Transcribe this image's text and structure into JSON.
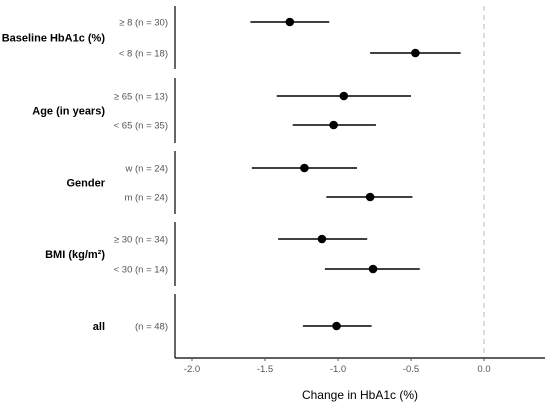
{
  "chart_data": {
    "type": "scatter",
    "xlabel": "Change in HbA1c (%)",
    "xlim": [
      -2.1,
      0.4
    ],
    "x_ticks": [
      -2.0,
      -1.5,
      -1.0,
      -0.5,
      0.0
    ],
    "x_tick_labels": [
      "-2.0",
      "-1.5",
      "-1.0",
      "-0.5",
      "0.0"
    ],
    "reference_line": 0.0,
    "groups": [
      {
        "label": "Baseline HbA1c (%)",
        "rows": [
          {
            "label": "≥ 8 (n = 30)",
            "estimate": -1.33,
            "ci_low": -1.6,
            "ci_high": -1.06
          },
          {
            "label": "< 8 (n = 18)",
            "estimate": -0.47,
            "ci_low": -0.78,
            "ci_high": -0.16
          }
        ]
      },
      {
        "label": "Age (in years)",
        "rows": [
          {
            "label": "≥ 65 (n = 13)",
            "estimate": -0.96,
            "ci_low": -1.42,
            "ci_high": -0.5
          },
          {
            "label": "< 65 (n = 35)",
            "estimate": -1.03,
            "ci_low": -1.31,
            "ci_high": -0.74
          }
        ]
      },
      {
        "label": "Gender",
        "rows": [
          {
            "label": "w (n = 24)",
            "estimate": -1.23,
            "ci_low": -1.59,
            "ci_high": -0.87
          },
          {
            "label": "m (n = 24)",
            "estimate": -0.78,
            "ci_low": -1.08,
            "ci_high": -0.49
          }
        ]
      },
      {
        "label": "BMI (kg/m²)",
        "rows": [
          {
            "label": "≥ 30 (n = 34)",
            "estimate": -1.11,
            "ci_low": -1.41,
            "ci_high": -0.8
          },
          {
            "label": "< 30 (n = 14)",
            "estimate": -0.76,
            "ci_low": -1.09,
            "ci_high": -0.44
          }
        ]
      },
      {
        "label": "all",
        "rows": [
          {
            "label": "(n = 48)",
            "estimate": -1.01,
            "ci_low": -1.24,
            "ci_high": -0.77
          }
        ]
      }
    ]
  }
}
